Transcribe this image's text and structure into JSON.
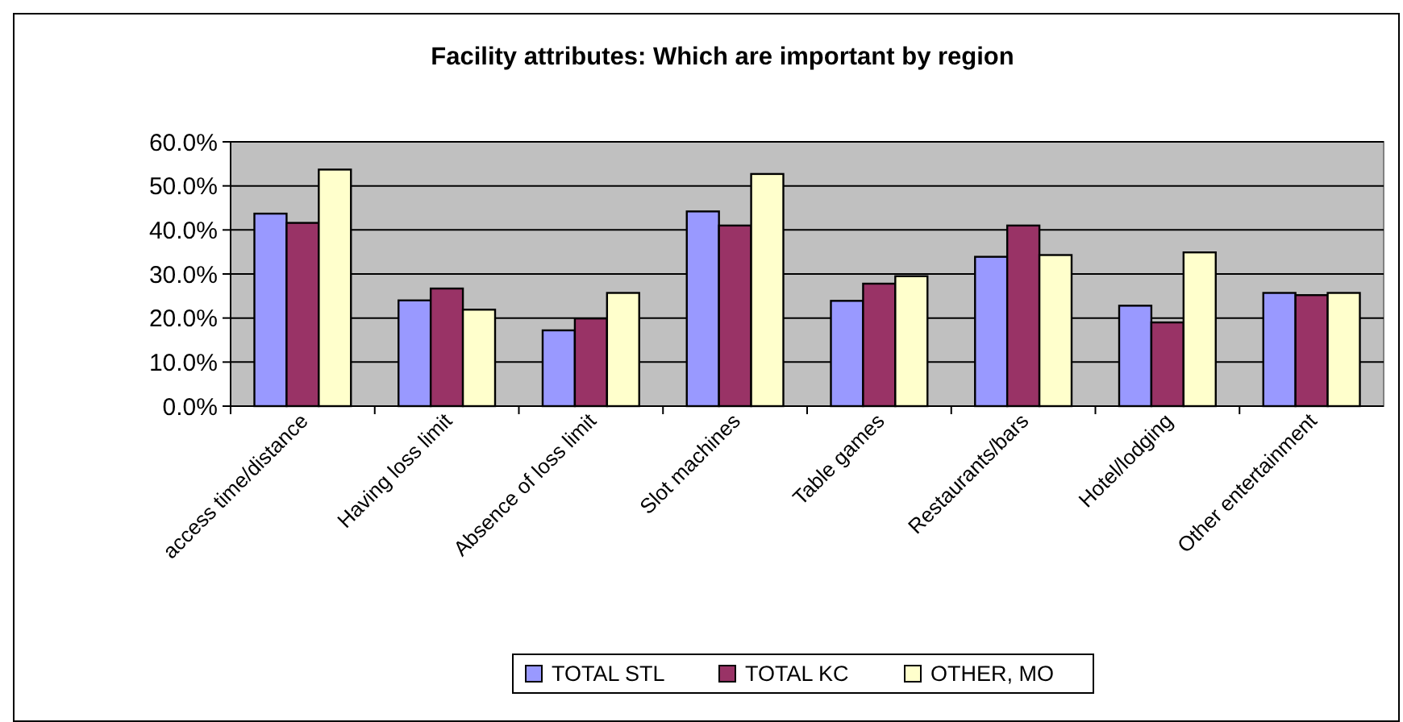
{
  "chart_data": {
    "type": "bar",
    "title": "Facility attributes: Which are important by region",
    "categories": [
      "access time/distance",
      "Having loss limit",
      "Absence of loss limit",
      "Slot machines",
      "Table games",
      "Restaurants/bars",
      "Hotel/lodging",
      "Other entertainment"
    ],
    "series": [
      {
        "name": "TOTAL STL",
        "color": "#9999ff",
        "values": [
          43.7,
          24.0,
          17.2,
          44.2,
          23.9,
          33.9,
          22.8,
          25.7
        ]
      },
      {
        "name": "TOTAL KC",
        "color": "#993366",
        "values": [
          41.6,
          26.7,
          19.9,
          41.0,
          27.8,
          41.0,
          19.0,
          25.2
        ]
      },
      {
        "name": "OTHER, MO",
        "color": "#ffffcc",
        "values": [
          53.7,
          21.9,
          25.7,
          52.7,
          29.5,
          34.3,
          34.9,
          25.7
        ]
      }
    ],
    "ylim": [
      0,
      60
    ],
    "yticks": [
      {
        "value": 0,
        "label": "0.0%"
      },
      {
        "value": 10,
        "label": "10.0%"
      },
      {
        "value": 20,
        "label": "20.0%"
      },
      {
        "value": 30,
        "label": "30.0%"
      },
      {
        "value": 40,
        "label": "40.0%"
      },
      {
        "value": 50,
        "label": "50.0%"
      },
      {
        "value": 60,
        "label": "60.0%"
      }
    ],
    "grid": "y",
    "legend": "bottom"
  }
}
